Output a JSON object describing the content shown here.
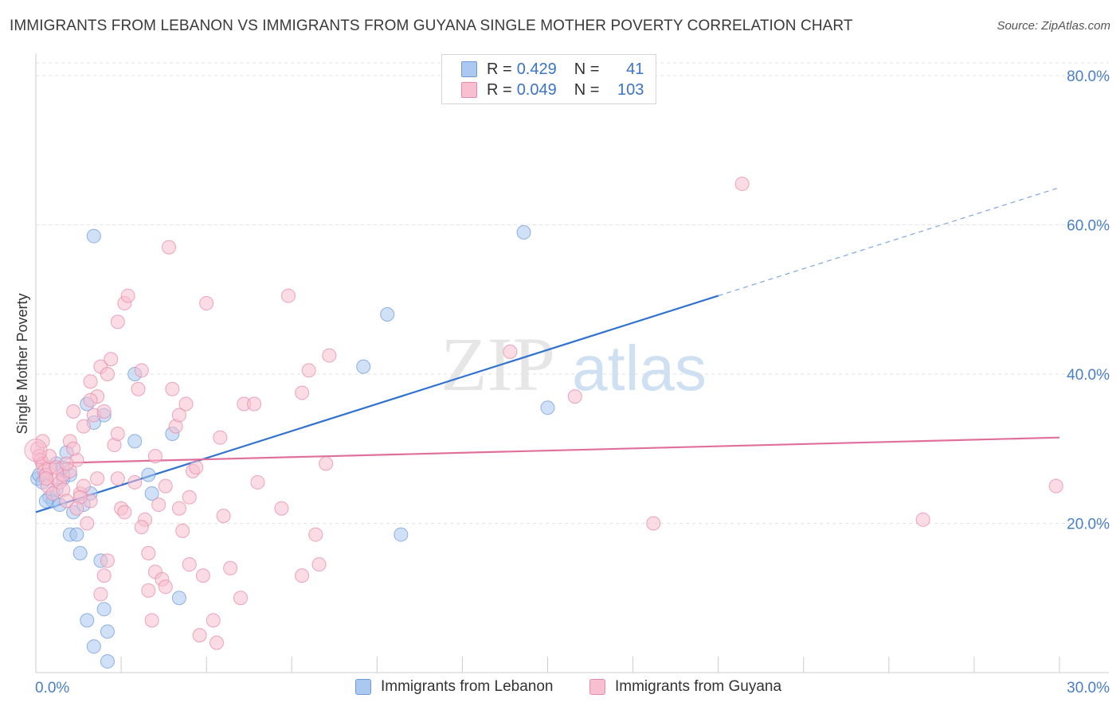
{
  "title": "IMMIGRANTS FROM LEBANON VS IMMIGRANTS FROM GUYANA SINGLE MOTHER POVERTY CORRELATION CHART",
  "source": "Source: ZipAtlas.com",
  "watermark": {
    "zip": "ZIP",
    "atlas": "atlas"
  },
  "legend": {
    "rows": [
      {
        "r_label": "R =",
        "r_value": "0.429",
        "n_label": "N =",
        "n_value": "41",
        "color": "#aac8f0",
        "border": "#6f9ad8"
      },
      {
        "r_label": "R =",
        "r_value": "0.049",
        "n_label": "N =",
        "n_value": "103",
        "color": "#f7bfd0",
        "border": "#e58aa8"
      }
    ]
  },
  "bottom_legend": [
    {
      "label": "Immigrants from Lebanon",
      "color": "#aac8f0",
      "border": "#6f9ad8"
    },
    {
      "label": "Immigrants from Guyana",
      "color": "#f7bfd0",
      "border": "#e58aa8"
    }
  ],
  "chart_data": {
    "type": "scatter",
    "title": "IMMIGRANTS FROM LEBANON VS IMMIGRANTS FROM GUYANA SINGLE MOTHER POVERTY CORRELATION CHART",
    "xlabel": "",
    "ylabel": "Single Mother Poverty",
    "xlim": [
      0,
      30
    ],
    "ylim": [
      0,
      80
    ],
    "x_tick_labels": [
      "0.0%",
      "30.0%"
    ],
    "y_ticks": [
      20,
      40,
      60,
      80
    ],
    "y_tick_labels": [
      "20.0%",
      "40.0%",
      "60.0%",
      "80.0%"
    ],
    "grid": true,
    "series": [
      {
        "name": "Immigrants from Lebanon",
        "color": "#6f9ad8",
        "fill": "#aac8f0",
        "points": [
          [
            0.05,
            26.0
          ],
          [
            0.1,
            26.5
          ],
          [
            0.2,
            25.5
          ],
          [
            0.3,
            26.5
          ],
          [
            0.4,
            23.5
          ],
          [
            0.5,
            23.0
          ],
          [
            0.6,
            28.0
          ],
          [
            0.7,
            22.5
          ],
          [
            0.8,
            26.0
          ],
          [
            0.9,
            29.5
          ],
          [
            1.0,
            26.5
          ],
          [
            1.1,
            21.5
          ],
          [
            1.0,
            18.5
          ],
          [
            1.2,
            18.5
          ],
          [
            1.3,
            16.0
          ],
          [
            1.5,
            36.0
          ],
          [
            1.6,
            24.0
          ],
          [
            1.7,
            33.5
          ],
          [
            1.7,
            58.5
          ],
          [
            1.9,
            15.0
          ],
          [
            2.0,
            8.5
          ],
          [
            2.1,
            5.5
          ],
          [
            2.1,
            1.5
          ],
          [
            1.7,
            3.5
          ],
          [
            1.5,
            7.0
          ],
          [
            2.0,
            34.5
          ],
          [
            2.9,
            40.0
          ],
          [
            2.9,
            31.0
          ],
          [
            3.3,
            26.5
          ],
          [
            3.4,
            24.0
          ],
          [
            4.0,
            32.0
          ],
          [
            4.2,
            10.0
          ],
          [
            10.3,
            48.0
          ],
          [
            9.6,
            41.0
          ],
          [
            10.7,
            18.5
          ],
          [
            14.3,
            59.0
          ],
          [
            15.0,
            35.5
          ],
          [
            0.3,
            23.0
          ],
          [
            0.6,
            24.5
          ],
          [
            0.8,
            27.5
          ],
          [
            1.4,
            22.5
          ]
        ],
        "trend": {
          "x0": 0,
          "y0": 21.5,
          "x1": 20,
          "y1": 50.5,
          "dash_x1": 30,
          "dash_y1": 65.0
        }
      },
      {
        "name": "Immigrants from Guyana",
        "color": "#e58aa8",
        "fill": "#f7bfd0",
        "points": [
          [
            0.05,
            30.0
          ],
          [
            0.1,
            29.0
          ],
          [
            0.15,
            28.5
          ],
          [
            0.2,
            28.0
          ],
          [
            0.25,
            27.0
          ],
          [
            0.3,
            26.5
          ],
          [
            0.35,
            25.0
          ],
          [
            0.4,
            27.5
          ],
          [
            0.5,
            24.0
          ],
          [
            0.6,
            26.0
          ],
          [
            0.7,
            25.5
          ],
          [
            0.8,
            24.5
          ],
          [
            0.8,
            26.5
          ],
          [
            0.9,
            23.0
          ],
          [
            1.0,
            27.0
          ],
          [
            1.0,
            31.0
          ],
          [
            1.1,
            35.0
          ],
          [
            1.2,
            28.5
          ],
          [
            1.3,
            24.0
          ],
          [
            1.4,
            25.0
          ],
          [
            1.5,
            20.0
          ],
          [
            1.6,
            23.0
          ],
          [
            1.6,
            39.0
          ],
          [
            1.7,
            34.5
          ],
          [
            1.8,
            37.0
          ],
          [
            1.9,
            41.0
          ],
          [
            2.0,
            35.0
          ],
          [
            2.1,
            40.0
          ],
          [
            2.2,
            42.0
          ],
          [
            1.9,
            10.5
          ],
          [
            2.0,
            13.0
          ],
          [
            2.3,
            30.5
          ],
          [
            2.4,
            26.0
          ],
          [
            2.5,
            22.0
          ],
          [
            2.6,
            49.5
          ],
          [
            2.4,
            47.0
          ],
          [
            2.7,
            50.5
          ],
          [
            3.0,
            38.0
          ],
          [
            3.1,
            40.5
          ],
          [
            3.2,
            20.5
          ],
          [
            3.3,
            11.0
          ],
          [
            3.3,
            16.0
          ],
          [
            3.4,
            7.0
          ],
          [
            3.5,
            13.5
          ],
          [
            3.6,
            22.5
          ],
          [
            3.7,
            12.5
          ],
          [
            3.8,
            25.0
          ],
          [
            3.9,
            57.0
          ],
          [
            4.0,
            38.0
          ],
          [
            4.1,
            33.0
          ],
          [
            4.2,
            22.0
          ],
          [
            4.3,
            19.0
          ],
          [
            4.4,
            36.0
          ],
          [
            4.5,
            14.5
          ],
          [
            4.5,
            23.5
          ],
          [
            4.6,
            27.0
          ],
          [
            4.8,
            5.0
          ],
          [
            4.9,
            13.0
          ],
          [
            5.0,
            49.5
          ],
          [
            5.2,
            7.0
          ],
          [
            5.3,
            4.0
          ],
          [
            5.4,
            31.5
          ],
          [
            5.7,
            14.0
          ],
          [
            6.0,
            10.0
          ],
          [
            6.1,
            36.0
          ],
          [
            6.4,
            36.0
          ],
          [
            6.5,
            25.5
          ],
          [
            7.2,
            22.0
          ],
          [
            7.4,
            50.5
          ],
          [
            7.8,
            13.0
          ],
          [
            7.8,
            37.5
          ],
          [
            8.0,
            40.5
          ],
          [
            8.2,
            18.5
          ],
          [
            8.3,
            14.5
          ],
          [
            8.5,
            28.0
          ],
          [
            8.6,
            42.5
          ],
          [
            13.9,
            43.0
          ],
          [
            15.8,
            37.0
          ],
          [
            18.1,
            20.0
          ],
          [
            20.7,
            65.5
          ],
          [
            26.0,
            20.5
          ],
          [
            29.9,
            25.0
          ],
          [
            0.2,
            31.0
          ],
          [
            0.4,
            29.0
          ],
          [
            0.6,
            27.5
          ],
          [
            0.9,
            28.0
          ],
          [
            1.1,
            30.0
          ],
          [
            1.3,
            23.5
          ],
          [
            1.4,
            33.0
          ],
          [
            1.6,
            36.5
          ],
          [
            1.8,
            26.0
          ],
          [
            2.1,
            15.0
          ],
          [
            2.4,
            32.0
          ],
          [
            2.6,
            21.5
          ],
          [
            2.9,
            25.5
          ],
          [
            3.1,
            19.5
          ],
          [
            3.5,
            29.0
          ],
          [
            3.8,
            11.5
          ],
          [
            4.2,
            34.5
          ],
          [
            4.7,
            27.5
          ],
          [
            5.5,
            21.0
          ],
          [
            0.3,
            26.0
          ],
          [
            1.2,
            22.0
          ]
        ],
        "trend": {
          "x0": 0,
          "y0": 28.0,
          "x1": 30,
          "y1": 31.5
        }
      }
    ]
  }
}
